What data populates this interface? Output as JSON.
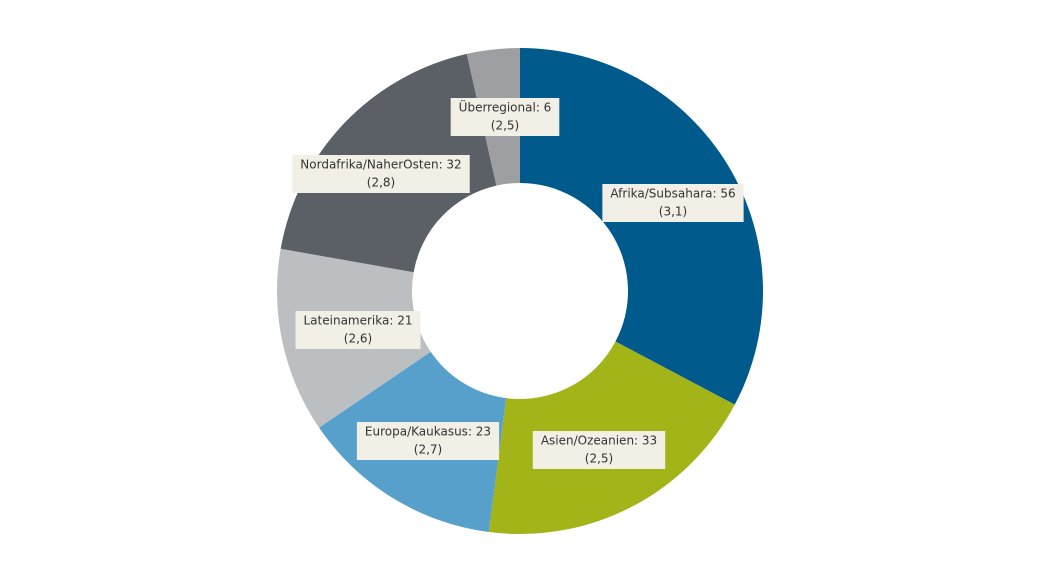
{
  "chart_data": {
    "type": "donut",
    "values": [
      56,
      33,
      23,
      21,
      32,
      6
    ],
    "value_labels": [
      "Afrika/Subsahara: 56",
      "Asien/Ozeanien: 33",
      "Europa/Kaukasus: 23",
      "Lateinamerika: 21",
      "Nordafrika/NaherOsten: 32",
      "Überregional: 6"
    ],
    "notes": [
      "(3,1)",
      "(2,5)",
      "(2,7)",
      "(2,6)",
      "(2,8)",
      "(2,5)"
    ],
    "colors": [
      "#005a8c",
      "#a3b419",
      "#57a0cb",
      "#bcbfc2",
      "#5a6066",
      "#9d9fa2"
    ]
  }
}
